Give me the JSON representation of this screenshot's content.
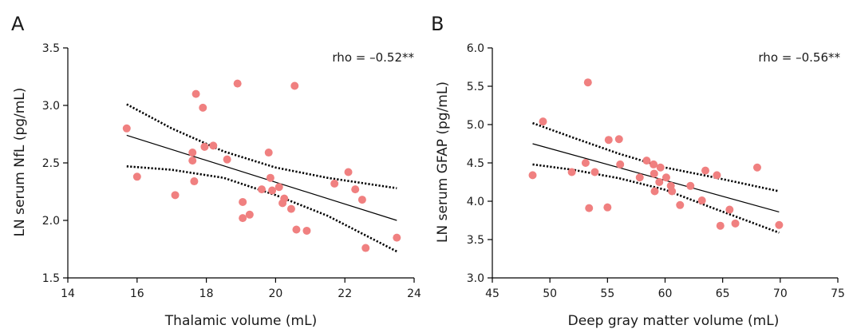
{
  "chart_data": [
    {
      "type": "scatter",
      "panel_label": "A",
      "xlabel": "Thalamic volume (mL)",
      "ylabel": "LN serum NfL (pg/mL)",
      "annotation": "rho = –0.52**",
      "xlim": [
        14,
        24
      ],
      "ylim": [
        1.5,
        3.5
      ],
      "xticks": [
        14,
        16,
        18,
        20,
        22,
        24
      ],
      "yticks": [
        1.5,
        2.0,
        2.5,
        3.0,
        3.5
      ],
      "ytick_labels": [
        "1.5",
        "2.0",
        "2.5",
        "3.0",
        "3.5"
      ],
      "point_color": "#f08080",
      "points": [
        [
          15.7,
          2.8
        ],
        [
          16.0,
          2.38
        ],
        [
          17.1,
          2.22
        ],
        [
          17.6,
          2.59
        ],
        [
          17.6,
          2.52
        ],
        [
          17.65,
          2.34
        ],
        [
          17.7,
          3.1
        ],
        [
          17.9,
          2.98
        ],
        [
          17.95,
          2.64
        ],
        [
          18.2,
          2.65
        ],
        [
          18.6,
          2.53
        ],
        [
          18.9,
          3.19
        ],
        [
          19.05,
          2.16
        ],
        [
          19.05,
          2.02
        ],
        [
          19.25,
          2.05
        ],
        [
          19.6,
          2.27
        ],
        [
          19.8,
          2.59
        ],
        [
          19.85,
          2.37
        ],
        [
          19.9,
          2.26
        ],
        [
          20.1,
          2.29
        ],
        [
          20.2,
          2.15
        ],
        [
          20.25,
          2.19
        ],
        [
          20.45,
          2.1
        ],
        [
          20.55,
          3.17
        ],
        [
          20.6,
          1.92
        ],
        [
          20.9,
          1.91
        ],
        [
          21.7,
          2.32
        ],
        [
          22.1,
          2.42
        ],
        [
          22.3,
          2.27
        ],
        [
          22.5,
          2.18
        ],
        [
          22.6,
          1.76
        ],
        [
          23.5,
          1.85
        ]
      ],
      "fit": {
        "x": [
          15.7,
          23.5
        ],
        "y": [
          2.74,
          2.0
        ]
      },
      "ci_upper": {
        "x": [
          15.7,
          17.0,
          18.5,
          20.0,
          21.5,
          23.5
        ],
        "y": [
          3.01,
          2.8,
          2.6,
          2.46,
          2.37,
          2.28
        ]
      },
      "ci_lower": {
        "x": [
          15.7,
          17.0,
          18.5,
          20.0,
          21.5,
          23.5
        ],
        "y": [
          2.47,
          2.44,
          2.37,
          2.22,
          2.04,
          1.73
        ]
      }
    },
    {
      "type": "scatter",
      "panel_label": "B",
      "xlabel": "Deep gray matter volume (mL)",
      "ylabel": "LN serum GFAP (pg/mL)",
      "annotation": "rho = –0.56**",
      "xlim": [
        45,
        75
      ],
      "ylim": [
        3.0,
        6.0
      ],
      "xticks": [
        45,
        50,
        55,
        60,
        65,
        70,
        75
      ],
      "yticks": [
        3.0,
        3.5,
        4.0,
        4.5,
        5.0,
        5.5,
        6.0
      ],
      "ytick_labels": [
        "3.0",
        "3.5",
        "4.0",
        "4.5",
        "5.0",
        "5.5",
        "6.0"
      ],
      "point_color": "#f08080",
      "points": [
        [
          48.5,
          4.34
        ],
        [
          49.4,
          5.04
        ],
        [
          51.9,
          4.38
        ],
        [
          53.1,
          4.5
        ],
        [
          53.3,
          5.55
        ],
        [
          53.4,
          3.91
        ],
        [
          53.9,
          4.38
        ],
        [
          55.0,
          3.92
        ],
        [
          55.1,
          4.8
        ],
        [
          56.0,
          4.81
        ],
        [
          56.1,
          4.48
        ],
        [
          57.8,
          4.31
        ],
        [
          58.4,
          4.53
        ],
        [
          59.0,
          4.48
        ],
        [
          59.05,
          4.36
        ],
        [
          59.1,
          4.13
        ],
        [
          59.5,
          4.25
        ],
        [
          59.6,
          4.44
        ],
        [
          60.1,
          4.31
        ],
        [
          60.5,
          4.2
        ],
        [
          60.6,
          4.13
        ],
        [
          61.3,
          3.95
        ],
        [
          62.2,
          4.2
        ],
        [
          63.2,
          4.01
        ],
        [
          63.5,
          4.4
        ],
        [
          64.5,
          4.34
        ],
        [
          64.8,
          3.68
        ],
        [
          65.6,
          3.89
        ],
        [
          66.1,
          3.71
        ],
        [
          68.0,
          4.44
        ],
        [
          69.9,
          3.69
        ]
      ],
      "fit": {
        "x": [
          48.5,
          69.9
        ],
        "y": [
          4.75,
          3.86
        ]
      },
      "ci_upper": {
        "x": [
          48.5,
          52.0,
          56.0,
          60.0,
          64.0,
          69.9
        ],
        "y": [
          5.02,
          4.83,
          4.62,
          4.44,
          4.32,
          4.13
        ]
      },
      "ci_lower": {
        "x": [
          48.5,
          52.0,
          56.0,
          60.0,
          64.0,
          69.9
        ],
        "y": [
          4.48,
          4.41,
          4.3,
          4.15,
          3.92,
          3.59
        ]
      }
    }
  ]
}
